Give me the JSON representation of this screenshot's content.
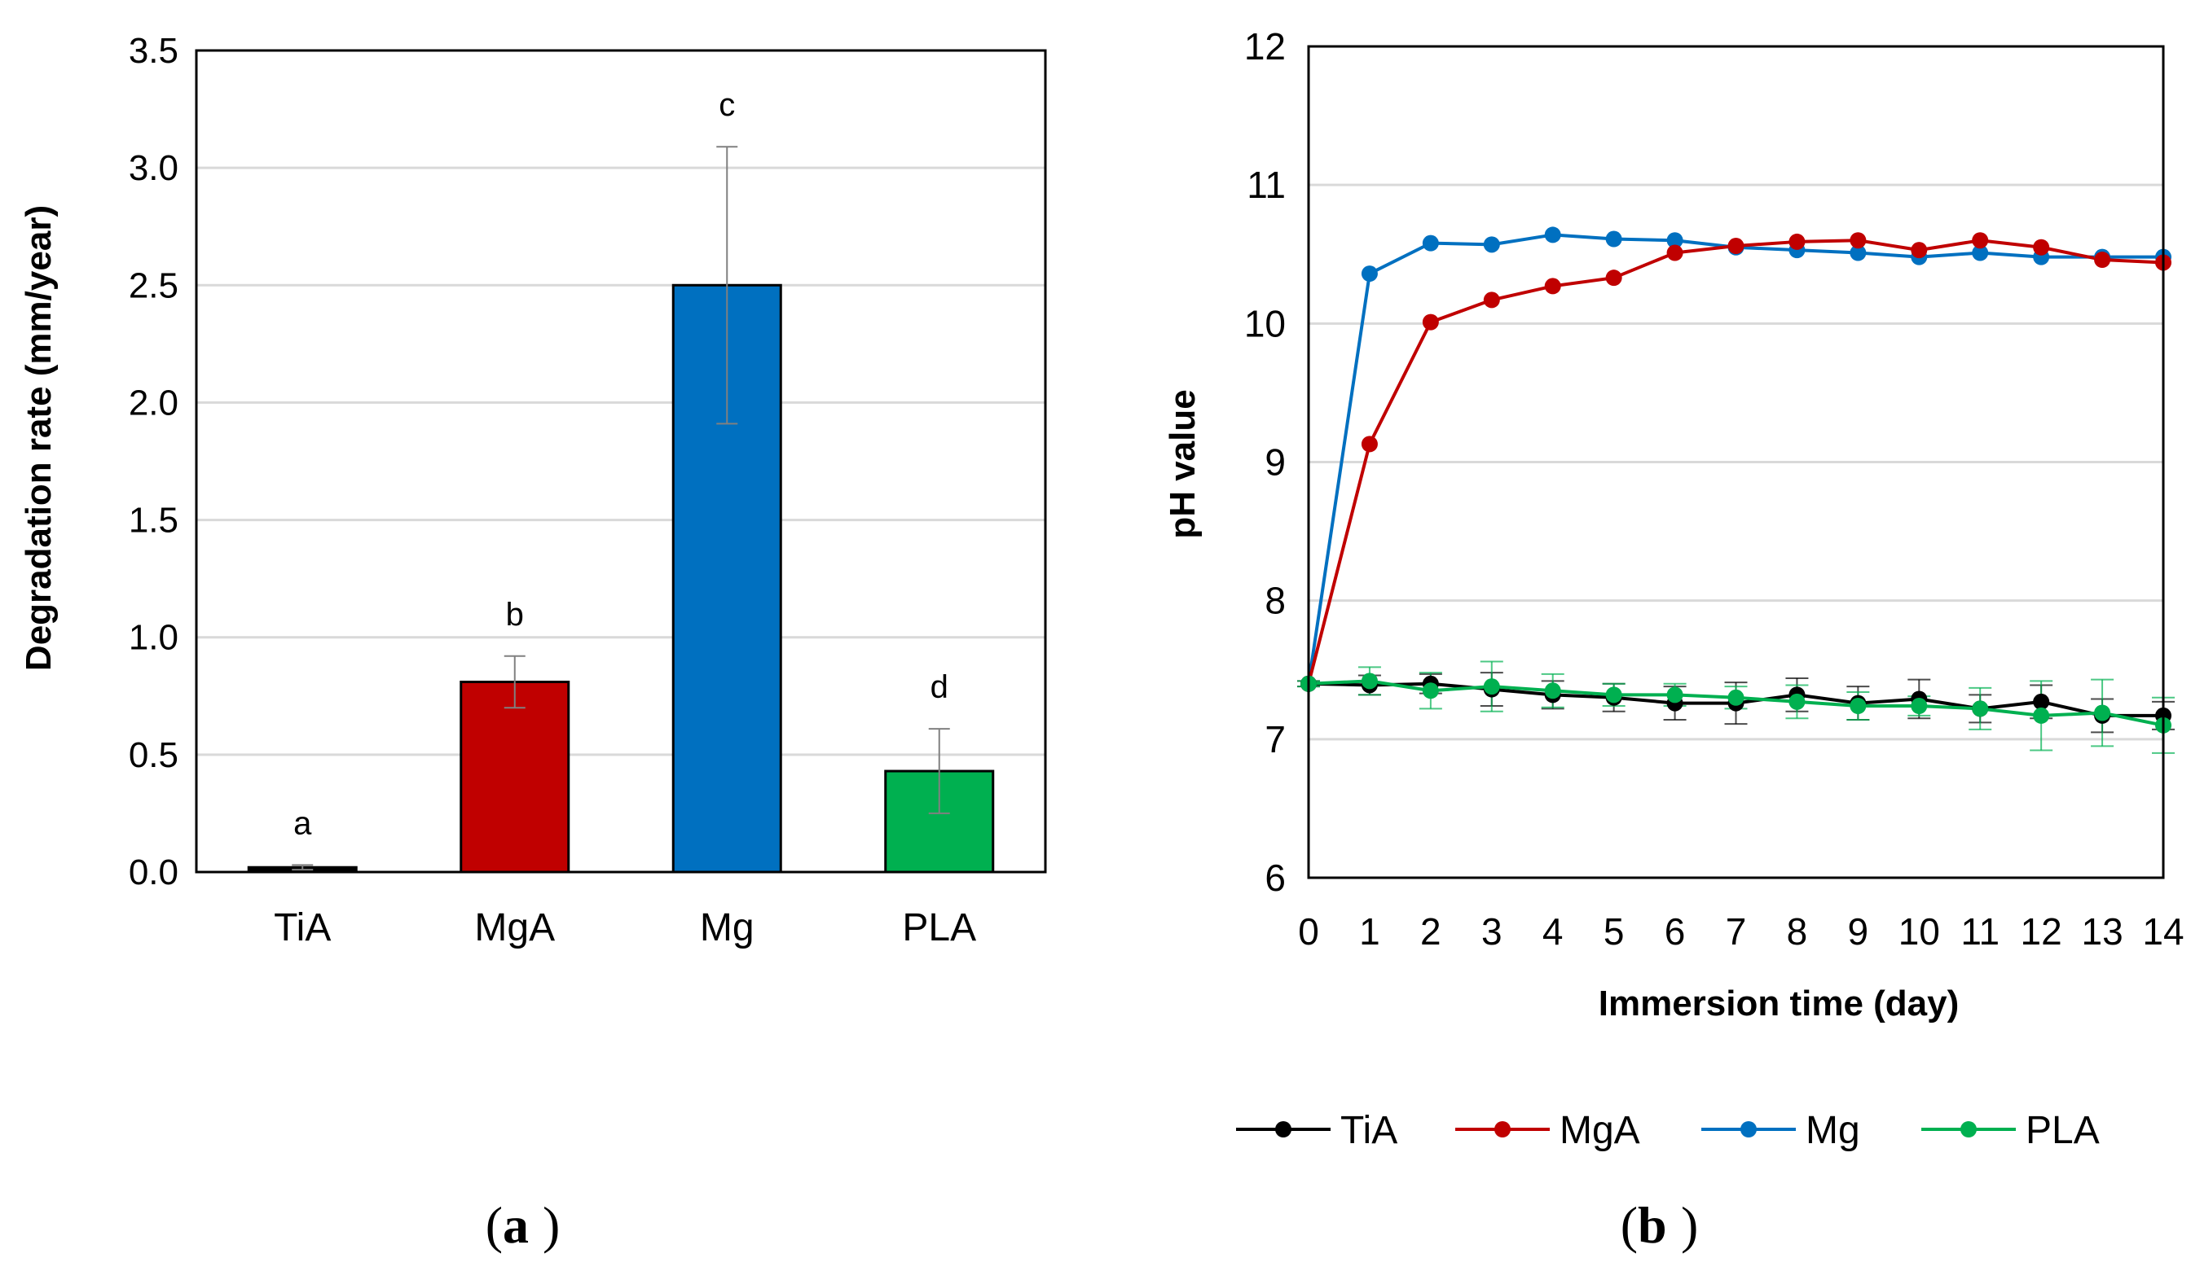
{
  "chart_data": [
    {
      "type": "bar",
      "panel_label": "a",
      "ylabel": "Degradation rate (mm/year)",
      "xlabel": "",
      "ylim": [
        0,
        3.5
      ],
      "yticks": [
        0.0,
        0.5,
        1.0,
        1.5,
        2.0,
        2.5,
        3.0,
        3.5
      ],
      "ytick_labels": [
        "0.0",
        "0.5",
        "1.0",
        "1.5",
        "2.0",
        "2.5",
        "3.0",
        "3.5"
      ],
      "grid": true,
      "categories": [
        "TiA",
        "MgA",
        "Mg",
        "PLA"
      ],
      "values": [
        0.02,
        0.81,
        2.5,
        0.43
      ],
      "error": [
        0.01,
        0.11,
        0.59,
        0.18
      ],
      "significance_letters": [
        "a",
        "b",
        "c",
        "d"
      ],
      "colors": [
        "#000000",
        "#c00000",
        "#0070c0",
        "#00b050"
      ]
    },
    {
      "type": "line",
      "panel_label": "b",
      "xlabel": "Immersion time (day)",
      "ylabel": "pH value",
      "xlim": [
        0,
        14
      ],
      "ylim": [
        6,
        12
      ],
      "x": [
        0,
        1,
        2,
        3,
        4,
        5,
        6,
        7,
        8,
        9,
        10,
        11,
        12,
        13,
        14
      ],
      "xtick_labels": [
        "0",
        "1",
        "2",
        "3",
        "4",
        "5",
        "6",
        "7",
        "8",
        "9",
        "10",
        "11",
        "12",
        "13",
        "14"
      ],
      "yticks": [
        6,
        7,
        8,
        9,
        10,
        11,
        12
      ],
      "ytick_labels": [
        "6",
        "7",
        "8",
        "9",
        "10",
        "11",
        "12"
      ],
      "grid": true,
      "legend_position": "bottom",
      "series": [
        {
          "name": "TiA",
          "color": "#000000",
          "values": [
            7.4,
            7.39,
            7.4,
            7.36,
            7.32,
            7.3,
            7.26,
            7.26,
            7.32,
            7.26,
            7.29,
            7.22,
            7.27,
            7.17,
            7.17
          ],
          "error": [
            0.02,
            0.07,
            0.07,
            0.12,
            0.1,
            0.1,
            0.12,
            0.15,
            0.12,
            0.12,
            0.14,
            0.1,
            0.12,
            0.12,
            0.1
          ]
        },
        {
          "name": "MgA",
          "color": "#c00000",
          "values": [
            7.4,
            9.13,
            10.01,
            10.17,
            10.27,
            10.33,
            10.51,
            10.56,
            10.59,
            10.6,
            10.53,
            10.6,
            10.55,
            10.46,
            10.44
          ]
        },
        {
          "name": "Mg",
          "color": "#0070c0",
          "values": [
            7.4,
            10.36,
            10.58,
            10.57,
            10.64,
            10.61,
            10.6,
            10.55,
            10.53,
            10.51,
            10.48,
            10.51,
            10.48,
            10.48,
            10.48
          ]
        },
        {
          "name": "PLA",
          "color": "#00b050",
          "values": [
            7.4,
            7.42,
            7.35,
            7.38,
            7.35,
            7.32,
            7.32,
            7.3,
            7.27,
            7.24,
            7.24,
            7.22,
            7.17,
            7.19,
            7.1
          ],
          "error": [
            0.02,
            0.1,
            0.13,
            0.18,
            0.12,
            0.08,
            0.08,
            0.08,
            0.12,
            0.1,
            0.07,
            0.15,
            0.25,
            0.24,
            0.2
          ]
        }
      ]
    }
  ],
  "colors": {
    "grid": "#d9d9d9",
    "axis": "#000000",
    "errorbar": "#808080",
    "background": "#ffffff"
  }
}
